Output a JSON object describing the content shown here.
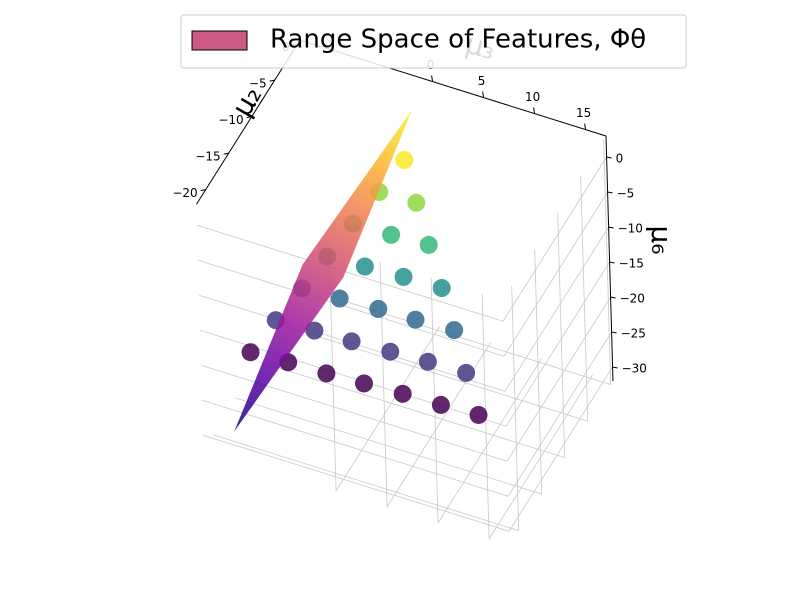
{
  "chart_data": {
    "type": "scatter3d",
    "xlabel": "μ₂",
    "ylabel": "μ₃",
    "zlabel": "μ₆",
    "xlim": [
      -22,
      0.5
    ],
    "ylim": [
      -13,
      17
    ],
    "zlim": [
      -32,
      3
    ],
    "xticks": [
      {
        "value": -20,
        "label": "−20"
      },
      {
        "value": -15,
        "label": "−15"
      },
      {
        "value": -10,
        "label": "−10"
      },
      {
        "value": -5,
        "label": "−5"
      },
      0
    ],
    "yticks": [
      0,
      5,
      10,
      15
    ],
    "zticks": [
      0,
      {
        "value": -5,
        "label": "−5"
      },
      {
        "value": -10,
        "label": "−10"
      },
      {
        "value": -15,
        "label": "−15"
      },
      {
        "value": -20,
        "label": "−20"
      },
      {
        "value": -25,
        "label": "−25"
      },
      {
        "value": -30,
        "label": "−30"
      }
    ],
    "grid": true,
    "legend": {
      "loc": "upper right"
    },
    "scatter": {
      "colormap": "viridis",
      "x": [
        -10.8,
        -10.6,
        -10.5,
        -10.3,
        -10.1,
        -10.0,
        -9.8,
        -10.2,
        -10.0,
        -9.9,
        -9.7,
        -9.5,
        -9.4,
        -9.6,
        -9.4,
        -9.2,
        -9.1,
        -8.9,
        -9.0,
        -8.8,
        -8.6,
        -8.5,
        -8.3,
        -8.2,
        -8.0,
        -7.7,
        -7.6,
        -7.1
      ],
      "y": [
        -13.4,
        -9.8,
        -6.1,
        -2.5,
        1.2,
        4.9,
        8.5,
        -11.1,
        -7.4,
        -3.8,
        -0.1,
        3.5,
        7.2,
        -8.7,
        -5.1,
        -1.4,
        2.2,
        5.9,
        -6.4,
        -2.8,
        0.9,
        4.6,
        -4.1,
        -0.4,
        3.2,
        -1.7,
        1.9,
        0.6
      ],
      "z": [
        -30,
        -30,
        -30,
        -30,
        -30,
        -30,
        -30,
        -25,
        -25,
        -25,
        -25,
        -25,
        -25,
        -20,
        -20,
        -20,
        -20,
        -20,
        -15,
        -15,
        -15,
        -15,
        -10,
        -10,
        -10,
        -5,
        -5,
        0
      ]
    },
    "surface": {
      "name": "Range Space of Features, Φθ",
      "color": "#cc5a85",
      "colormap": "plasma",
      "x": [
        -2.7,
        -10.8,
        -18.9,
        -10.8
      ],
      "y": [
        -0.6,
        -4,
        -11.4,
        -8
      ],
      "z": [
        2,
        -15,
        -32,
        -15
      ]
    }
  }
}
